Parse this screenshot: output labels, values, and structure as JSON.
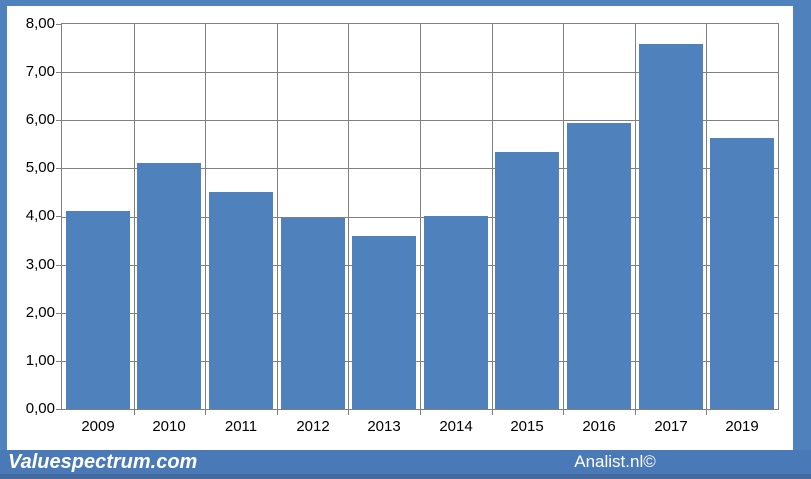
{
  "footer": {
    "left_brand": "Valuespectrum.com",
    "right_brand": "Analist.nl©"
  },
  "chart_data": {
    "type": "bar",
    "title": "",
    "xlabel": "",
    "ylabel": "",
    "categories": [
      "2009",
      "2010",
      "2011",
      "2012",
      "2013",
      "2014",
      "2015",
      "2016",
      "2017",
      "2019"
    ],
    "values": [
      4.12,
      5.11,
      4.5,
      3.97,
      3.6,
      4.02,
      5.34,
      5.94,
      7.58,
      5.64
    ],
    "ylim": [
      0,
      8
    ],
    "ytick_step": 1,
    "ytick_labels": [
      "0,00",
      "1,00",
      "2,00",
      "3,00",
      "4,00",
      "5,00",
      "6,00",
      "7,00",
      "8,00"
    ],
    "grid": true,
    "legend": null,
    "colors": {
      "bar": "#4F81BD",
      "frame": "#4F81BD",
      "plot_background": "#FFFFFF",
      "canvas_background": "#FFFFFF",
      "gridline": "#808080",
      "plot_border": "#808080",
      "tick": "#808080",
      "axis_text": "#000000",
      "footer_strip": "#4A79B8",
      "footer_bottom_line": "#44699C",
      "footer_text": "#FFFFFF"
    }
  }
}
